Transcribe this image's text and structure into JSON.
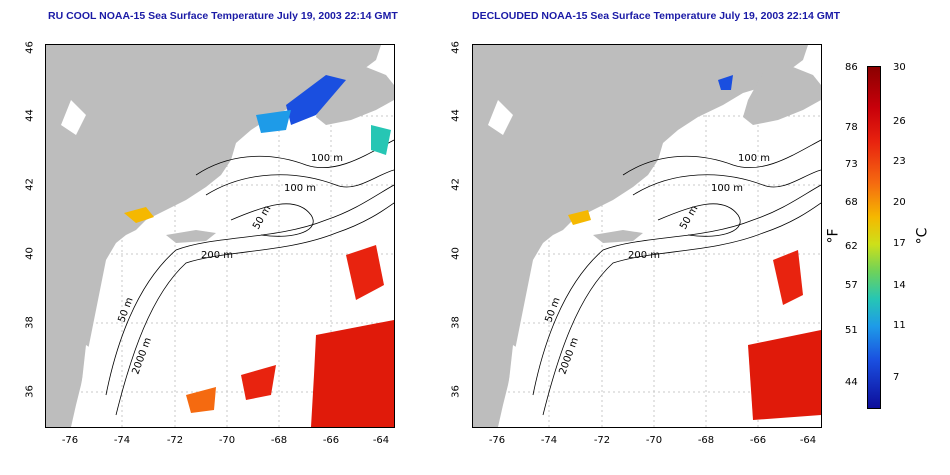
{
  "titles": {
    "left": "RU COOL NOAA-15 Sea Surface Temperature July 19, 2003 22:14 GMT",
    "right": "DECLOUDED NOAA-15 Sea Surface Temperature July 19, 2003 22:14 GMT"
  },
  "axes": {
    "lat_ticks": [
      "46",
      "44",
      "42",
      "40",
      "38",
      "36"
    ],
    "lon_ticks": [
      "-76",
      "-74",
      "-72",
      "-70",
      "-68",
      "-66",
      "-64"
    ]
  },
  "contours": {
    "left": [
      "100 m",
      "100 m",
      "50 m",
      "200 m",
      "50 m",
      "2000 m"
    ],
    "right": [
      "100 m",
      "100 m",
      "50 m",
      "200 m",
      "50 m",
      "2000 m"
    ]
  },
  "colorbar": {
    "fahrenheit": [
      "86",
      "78",
      "73",
      "68",
      "62",
      "57",
      "51",
      "44"
    ],
    "celsius": [
      "30",
      "26",
      "23",
      "20",
      "17",
      "14",
      "11",
      "7"
    ],
    "unit_f": "°F",
    "unit_c": "°C"
  },
  "colors": {
    "land": "#bdbdbd",
    "ocean": "#ffffff",
    "warm": "#e01a0a",
    "cool": "#1a4fe0",
    "title": "#1a1aa6"
  }
}
